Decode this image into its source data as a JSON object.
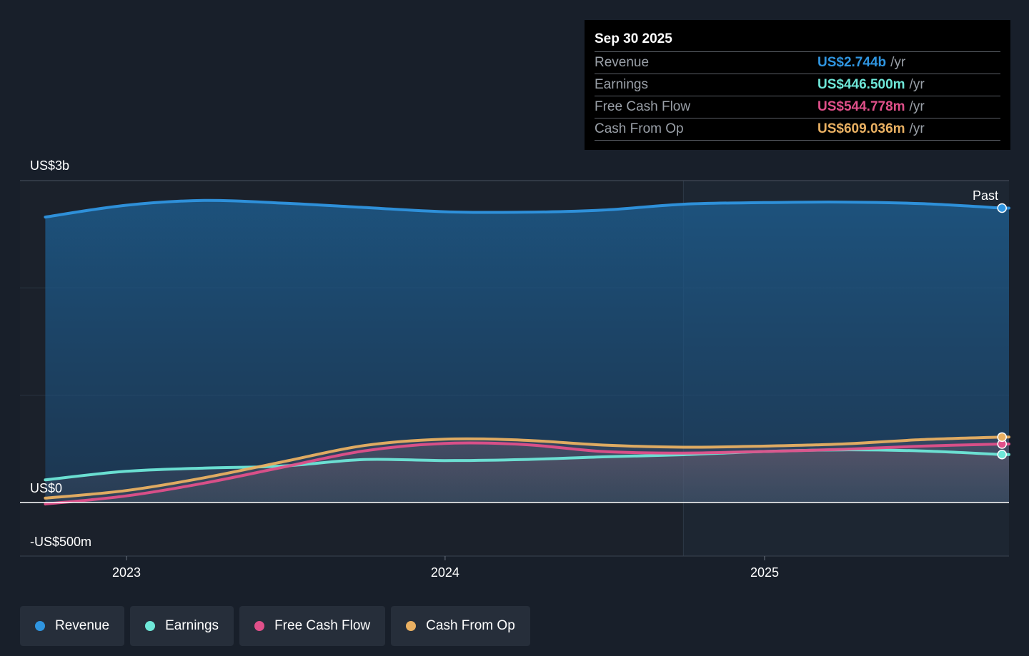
{
  "tooltip": {
    "date": "Sep 30 2025",
    "rows": [
      {
        "name": "Revenue",
        "value": "US$2.744b",
        "unit": "/yr",
        "color": "#2f95e0"
      },
      {
        "name": "Earnings",
        "value": "US$446.500m",
        "unit": "/yr",
        "color": "#6ee7d8"
      },
      {
        "name": "Free Cash Flow",
        "value": "US$544.778m",
        "unit": "/yr",
        "color": "#e0508a"
      },
      {
        "name": "Cash From Op",
        "value": "US$609.036m",
        "unit": "/yr",
        "color": "#e9b062"
      }
    ]
  },
  "legend": [
    {
      "label": "Revenue",
      "color": "#2f95e0"
    },
    {
      "label": "Earnings",
      "color": "#6ee7d8"
    },
    {
      "label": "Free Cash Flow",
      "color": "#e0508a"
    },
    {
      "label": "Cash From Op",
      "color": "#e9b062"
    }
  ],
  "chart_data": {
    "type": "area",
    "title": "",
    "xlabel": "",
    "ylabel": "",
    "y_unit": "US$m",
    "ylim": [
      -500,
      3000
    ],
    "y_tick_labels": [
      {
        "value": 3000,
        "label": "US$3b"
      },
      {
        "value": 0,
        "label": "US$0"
      },
      {
        "value": -500,
        "label": "-US$500m"
      }
    ],
    "x_tick_labels": [
      {
        "value": "2023-01-01",
        "label": "2023"
      },
      {
        "value": "2024-01-01",
        "label": "2024"
      },
      {
        "value": "2025-01-01",
        "label": "2025"
      }
    ],
    "x_range": [
      "2022-09-01",
      "2025-10-08"
    ],
    "past_label": "Past",
    "past_start": "2024-09-30",
    "grid": true,
    "legend_position": "bottom",
    "series": [
      {
        "name": "Revenue",
        "color": "#2f95e0",
        "points": [
          [
            "2022-09-30",
            2660
          ],
          [
            "2022-12-31",
            2770
          ],
          [
            "2023-03-31",
            2815
          ],
          [
            "2023-06-30",
            2790
          ],
          [
            "2023-09-30",
            2750
          ],
          [
            "2023-12-31",
            2710
          ],
          [
            "2024-03-31",
            2705
          ],
          [
            "2024-06-30",
            2725
          ],
          [
            "2024-09-30",
            2780
          ],
          [
            "2024-12-31",
            2795
          ],
          [
            "2025-03-31",
            2800
          ],
          [
            "2025-06-30",
            2785
          ],
          [
            "2025-09-30",
            2744
          ]
        ]
      },
      {
        "name": "Earnings",
        "color": "#6ee7d8",
        "points": [
          [
            "2022-09-30",
            210
          ],
          [
            "2022-12-31",
            290
          ],
          [
            "2023-03-31",
            320
          ],
          [
            "2023-06-30",
            340
          ],
          [
            "2023-09-30",
            400
          ],
          [
            "2023-12-31",
            390
          ],
          [
            "2024-03-31",
            400
          ],
          [
            "2024-06-30",
            425
          ],
          [
            "2024-09-30",
            445
          ],
          [
            "2024-12-31",
            475
          ],
          [
            "2025-03-31",
            490
          ],
          [
            "2025-06-30",
            480
          ],
          [
            "2025-09-30",
            446.5
          ]
        ]
      },
      {
        "name": "Free Cash Flow",
        "color": "#e0508a",
        "points": [
          [
            "2022-09-30",
            -15
          ],
          [
            "2022-12-31",
            60
          ],
          [
            "2023-03-31",
            180
          ],
          [
            "2023-06-30",
            330
          ],
          [
            "2023-09-30",
            480
          ],
          [
            "2023-12-31",
            550
          ],
          [
            "2024-03-31",
            540
          ],
          [
            "2024-06-30",
            475
          ],
          [
            "2024-09-30",
            460
          ],
          [
            "2024-12-31",
            475
          ],
          [
            "2025-03-31",
            495
          ],
          [
            "2025-06-30",
            525
          ],
          [
            "2025-09-30",
            544.778
          ]
        ]
      },
      {
        "name": "Cash From Op",
        "color": "#e9b062",
        "points": [
          [
            "2022-09-30",
            40
          ],
          [
            "2022-12-31",
            110
          ],
          [
            "2023-03-31",
            230
          ],
          [
            "2023-06-30",
            380
          ],
          [
            "2023-09-30",
            530
          ],
          [
            "2023-12-31",
            590
          ],
          [
            "2024-03-31",
            580
          ],
          [
            "2024-06-30",
            535
          ],
          [
            "2024-09-30",
            515
          ],
          [
            "2024-12-31",
            525
          ],
          [
            "2025-03-31",
            545
          ],
          [
            "2025-06-30",
            585
          ],
          [
            "2025-09-30",
            609.036
          ]
        ]
      }
    ]
  }
}
